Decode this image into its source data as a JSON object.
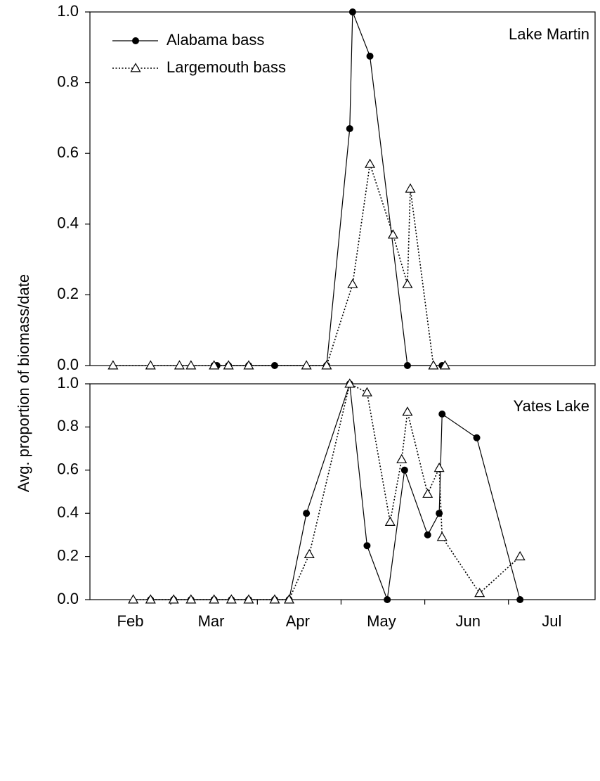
{
  "y_label": "Avg. proportion of biomass/date",
  "chart_data": [
    {
      "type": "line",
      "annotation": "Lake Martin",
      "legend": true,
      "xlim": [
        32,
        207
      ],
      "ylim": [
        0,
        1
      ],
      "yticks": [
        {
          "value": 0,
          "label": "0.0"
        },
        0.2,
        0.4,
        0.6,
        0.8,
        {
          "value": 1,
          "label": "1.0"
        }
      ],
      "series": [
        {
          "name": "Alabama bass",
          "color": "#000000",
          "marker": "circle",
          "line": "solid",
          "x": [
            75,
            76,
            80,
            87,
            96,
            114,
            122,
            123,
            129,
            142,
            154
          ],
          "values": [
            0,
            0,
            0,
            0,
            0,
            0,
            0.67,
            1.0,
            0.875,
            0,
            0
          ]
        },
        {
          "name": "Largemouth bass",
          "color": "#000000",
          "marker": "triangle",
          "line": "dotted",
          "x": [
            40,
            53,
            63,
            67,
            75,
            80,
            87,
            107,
            114,
            123,
            129,
            137,
            142,
            143,
            151,
            155
          ],
          "values": [
            0,
            0,
            0,
            0,
            0,
            0,
            0,
            0,
            0,
            0.23,
            0.57,
            0.37,
            0.23,
            0.5,
            0,
            0
          ]
        }
      ]
    },
    {
      "type": "line",
      "annotation": "Yates Lake",
      "legend": false,
      "xlim": [
        32,
        207
      ],
      "ylim": [
        0,
        1
      ],
      "yticks": [
        {
          "value": 0,
          "label": "0.0"
        },
        0.2,
        0.4,
        0.6,
        0.8,
        {
          "value": 1,
          "label": "1.0"
        }
      ],
      "xticks": [
        {
          "value": 46,
          "label": "Feb"
        },
        {
          "value": 74,
          "label": "Mar"
        },
        {
          "value": 104,
          "label": "Apr"
        },
        {
          "value": 133,
          "label": "May"
        },
        {
          "value": 163,
          "label": "Jun"
        },
        {
          "value": 192,
          "label": "Jul"
        }
      ],
      "xtick_marks": [
        60,
        90,
        119,
        148,
        177
      ],
      "series": [
        {
          "color": "#000000",
          "marker": "circle",
          "line": "solid",
          "x": [
            53,
            61,
            67,
            75,
            81,
            87,
            96,
            101,
            107,
            122,
            128,
            135,
            141,
            149,
            153,
            154,
            166,
            181
          ],
          "values": [
            0,
            0,
            0,
            0,
            0,
            0,
            0,
            0,
            0.4,
            1.0,
            0.25,
            0,
            0.6,
            0.3,
            0.4,
            0.86,
            0.75,
            0
          ]
        },
        {
          "color": "#000000",
          "marker": "triangle",
          "line": "dotted",
          "x": [
            47,
            53,
            61,
            67,
            75,
            81,
            87,
            96,
            101,
            108,
            122,
            128,
            136,
            140,
            142,
            149,
            153,
            154,
            167,
            181
          ],
          "values": [
            0,
            0,
            0,
            0,
            0,
            0,
            0,
            0,
            0,
            0.21,
            1.0,
            0.96,
            0.36,
            0.65,
            0.87,
            0.49,
            0.61,
            0.29,
            0.03,
            0.2
          ]
        }
      ]
    }
  ]
}
